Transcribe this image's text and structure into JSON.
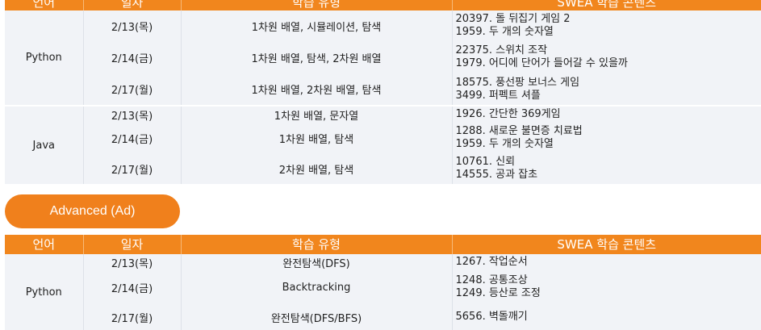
{
  "headers": {
    "lang": "언어",
    "date": "일자",
    "type": "학습 유형",
    "content": "SWEA 학습 콘텐츠"
  },
  "section1": {
    "groups": [
      {
        "lang": "Python",
        "rows": [
          {
            "date": "2/13(목)",
            "type": "1차원 배열, 시뮬레이션, 탐색",
            "content": [
              "20397. 돌 뒤집기 게임 2",
              "1959. 두 개의 숫자열"
            ]
          },
          {
            "date": "2/14(금)",
            "type": "1차원 배열, 탐색, 2차원 배열",
            "content": [
              "22375. 스위치 조작",
              "1979. 어디에 단어가 들어갈 수 있을까"
            ]
          },
          {
            "date": "2/17(월)",
            "type": "1차원 배열, 2차원 배열, 탐색",
            "content": [
              "18575. 풍선팡 보너스 게임",
              "3499. 퍼펙트 셔플"
            ]
          }
        ]
      },
      {
        "lang": "Java",
        "rows": [
          {
            "date": "2/13(목)",
            "type": "1차원 배열, 문자열",
            "content": [
              "1926. 간단한 369게임"
            ]
          },
          {
            "date": "2/14(금)",
            "type": "1차원 배열, 탐색",
            "content": [
              "1288. 새로운 불면증 치료법",
              "1959. 두 개의 숫자열"
            ]
          },
          {
            "date": "2/17(월)",
            "type": "2차원 배열, 탐색",
            "content": [
              "10761. 신뢰",
              "14555. 공과 잡초"
            ]
          }
        ]
      }
    ]
  },
  "advanced_label": "Advanced (Ad)",
  "section2": {
    "groups": [
      {
        "lang": "Python",
        "rows": [
          {
            "date": "2/13(목)",
            "type": "완전탐색(DFS)",
            "content": [
              "1267. 작업순서"
            ]
          },
          {
            "date": "2/14(금)",
            "type": "Backtracking",
            "content": [
              "1248. 공통조상",
              "1249. 등산로 조정"
            ]
          },
          {
            "date": "2/17(월)",
            "type": "완전탐색(DFS/BFS)",
            "content": [
              "5656. 벽돌깨기"
            ]
          }
        ]
      }
    ]
  }
}
